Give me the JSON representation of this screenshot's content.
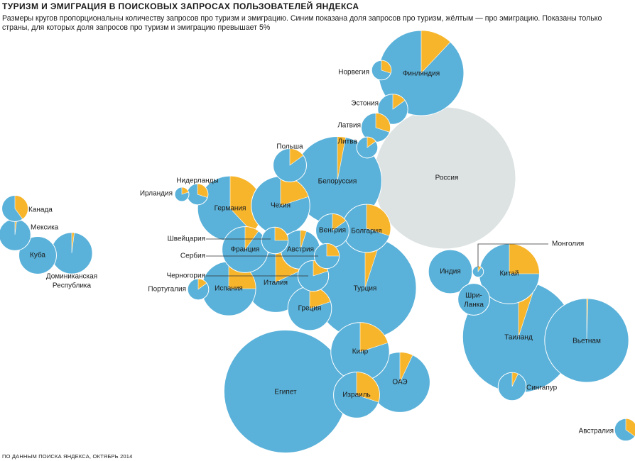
{
  "title": "ТУРИЗМ И ЭМИГРАЦИЯ В ПОИСКОВЫХ ЗАПРОСАХ ПОЛЬЗОВАТЕЛЕЙ ЯНДЕКСА",
  "subtitle": "Размеры кругов пропорциональны количеству запросов про туризм и эмиграцию. Синим показана доля запросов про туризм, жёлтым — про эмиграцию. Показаны только страны, для которых доля запросов про туризм и эмиграцию превышает 5%",
  "source": "ПО ДАННЫМ ПОИСКА ЯНДЕКСА, ОКТЯБРЬ 2014",
  "colors": {
    "tourism": "#5ab1d9",
    "emigration": "#f7b52c",
    "russia": "#dde2e2",
    "stroke": "#ffffff",
    "text": "#1a1a1a",
    "leader": "#333333"
  },
  "chart_data": {
    "type": "bubble-pie",
    "size_metric": "relative number of tourism + emigration queries",
    "series": [
      "Туризм",
      "Эмиграция"
    ],
    "countries": [
      {
        "name": "Россия",
        "relative_size": 100,
        "emigration_share": null
      },
      {
        "name": "Египет",
        "relative_size": 75,
        "emigration_share": 0
      },
      {
        "name": "Турция",
        "relative_size": 52,
        "emigration_share": 0.05
      },
      {
        "name": "Таиланд",
        "relative_size": 62,
        "emigration_share": 0.05
      },
      {
        "name": "Белоруссия",
        "relative_size": 39,
        "emigration_share": 0.03
      },
      {
        "name": "Финляндия",
        "relative_size": 36,
        "emigration_share": 0.12
      },
      {
        "name": "Вьетнам",
        "relative_size": 35,
        "emigration_share": 0.005
      },
      {
        "name": "Германия",
        "relative_size": 21,
        "emigration_share": 0.38
      },
      {
        "name": "Италия",
        "relative_size": 18,
        "emigration_share": 0.18
      },
      {
        "name": "Испания",
        "relative_size": 14.5,
        "emigration_share": 0.25
      },
      {
        "name": "Чехия",
        "relative_size": 17,
        "emigration_share": 0.2
      },
      {
        "name": "ОАЭ",
        "relative_size": 18,
        "emigration_share": 0.07
      },
      {
        "name": "Кипр",
        "relative_size": 17,
        "emigration_share": 0.2
      },
      {
        "name": "Китай",
        "relative_size": 18,
        "emigration_share": 0.25
      },
      {
        "name": "Болгария",
        "relative_size": 11.5,
        "emigration_share": 0.3
      },
      {
        "name": "Израиль",
        "relative_size": 10.5,
        "emigration_share": 0.3
      },
      {
        "name": "Франция",
        "relative_size": 10.5,
        "emigration_share": 0.1
      },
      {
        "name": "Индия",
        "relative_size": 9.5,
        "emigration_share": 0
      },
      {
        "name": "Греция",
        "relative_size": 9.5,
        "emigration_share": 0.2
      },
      {
        "name": "Доминиканская Республика",
        "relative_size": 8.5,
        "emigration_share": 0.02
      },
      {
        "name": "Австрия",
        "relative_size": 7.5,
        "emigration_share": 0.05
      },
      {
        "name": "Куба",
        "relative_size": 7,
        "emigration_share": 0
      },
      {
        "name": "Шри-Ланка",
        "relative_size": 5,
        "emigration_share": 0
      },
      {
        "name": "Польша",
        "relative_size": 5.5,
        "emigration_share": 0.15
      },
      {
        "name": "Венгрия",
        "relative_size": 5.5,
        "emigration_share": 0.15
      },
      {
        "name": "Эстония",
        "relative_size": 4.5,
        "emigration_share": 0.15
      },
      {
        "name": "Черногория",
        "relative_size": 4.7,
        "emigration_share": 0.2
      },
      {
        "name": "Латвия",
        "relative_size": 4.2,
        "emigration_share": 0.3
      },
      {
        "name": "Мексика",
        "relative_size": 5,
        "emigration_share": 0.02
      },
      {
        "name": "Швейцария",
        "relative_size": 3.5,
        "emigration_share": 0.25
      },
      {
        "name": "Сингапур",
        "relative_size": 3.9,
        "emigration_share": 0.07
      },
      {
        "name": "Канада",
        "relative_size": 3.4,
        "emigration_share": 0.4
      },
      {
        "name": "Сербия",
        "relative_size": 3.1,
        "emigration_share": 0.25
      },
      {
        "name": "Австралия",
        "relative_size": 2.5,
        "emigration_share": 0.35
      },
      {
        "name": "Норвегия",
        "relative_size": 1.9,
        "emigration_share": 0.3
      },
      {
        "name": "Литва",
        "relative_size": 2.2,
        "emigration_share": 0.15
      },
      {
        "name": "Нидерланды",
        "relative_size": 2.2,
        "emigration_share": 0.3
      },
      {
        "name": "Португалия",
        "relative_size": 2.2,
        "emigration_share": 0.15
      },
      {
        "name": "Ирландия",
        "relative_size": 1,
        "emigration_share": 0.2
      },
      {
        "name": "Монголия",
        "relative_size": 0.6,
        "emigration_share": 0.1
      }
    ]
  }
}
